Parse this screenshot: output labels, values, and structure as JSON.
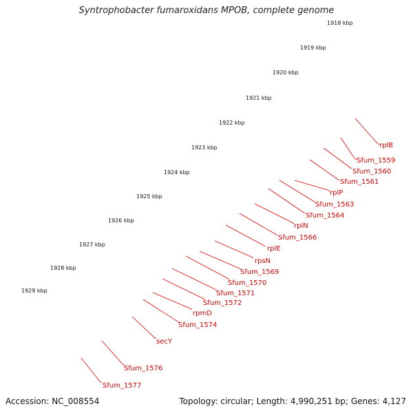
{
  "title": "Syntrophobacter fumaroxidans MPOB, complete genome",
  "footer": {
    "accession": "Accession: NC_008554",
    "summary": "Topology: circular; Length: 4,990,251 bp; Genes: 4,127"
  },
  "colors": {
    "backbone": "#8a8a8a",
    "forward_gene": "#ff0000",
    "reverse_gene": "#f08080",
    "gc_skew_dots": "#228b22",
    "label_line": "#dd0000",
    "highlight_green": "#99ee33",
    "highlight_blue": "#1eaaee"
  },
  "ticks": [
    "1918 kbp",
    "1919 kbp",
    "1920 kbp",
    "1921 kbp",
    "1922 kbp",
    "1923 kbp",
    "1924 kbp",
    "1925 kbp",
    "1926 kbp",
    "1927 kbp",
    "1928 kbp",
    "1929 kbp"
  ],
  "gene_labels": [
    "rplB",
    "Sfum_1559",
    "Sfum_1560",
    "Sfum_1561",
    "rplP",
    "Sfum_1563",
    "Sfum_1564",
    "rplN",
    "Sfum_1566",
    "rplE",
    "rpsN",
    "Sfum_1569",
    "Sfum_1570",
    "Sfum_1571",
    "Sfum_1572",
    "rpmD",
    "Sfum_1574",
    "secY",
    "Sfum_1576",
    "Sfum_1577"
  ]
}
